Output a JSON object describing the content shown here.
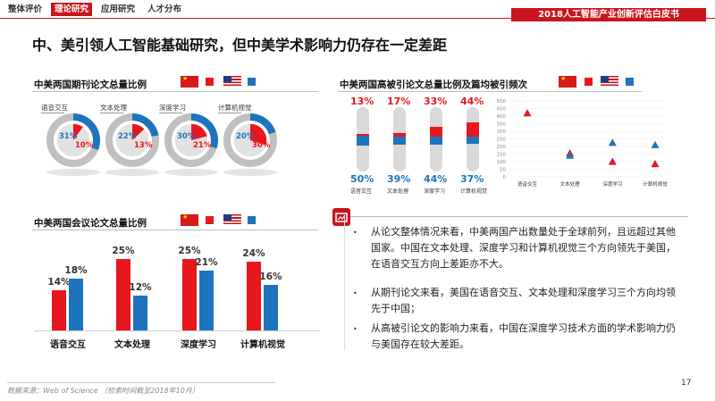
{
  "nav": {
    "tabs": [
      {
        "label": "整体评价",
        "active": false
      },
      {
        "label": "理论研究",
        "active": true
      },
      {
        "label": "应用研究",
        "active": false
      },
      {
        "label": "人才分布",
        "active": false
      }
    ],
    "report_title": "2018人工智能产业创新评估白皮书"
  },
  "page_title": "中、美引领人工智能基础研究，但中美学术影响力仍存在一定差距",
  "colors": {
    "china": "#e8161e",
    "usa": "#1e73be",
    "accent": "#c9151e"
  },
  "sections": {
    "journal": "中美两国期刊论文总量比例",
    "conference": "中美两国会议论文总量比例",
    "highly_cited": "中美两国高被引论文总量比例及篇均被引频次"
  },
  "chart_data": [
    {
      "type": "pie",
      "title": "中美两国期刊论文总量比例",
      "categories": [
        "语音交互",
        "文本处理",
        "深度学习",
        "计算机视觉"
      ],
      "series": [
        {
          "name": "美国",
          "values": [
            31,
            22,
            30,
            20
          ]
        },
        {
          "name": "中国",
          "values": [
            10,
            13,
            21,
            30
          ]
        }
      ],
      "labels": {
        "usa": [
          "31%",
          "22%",
          "30%",
          "20%"
        ],
        "china": [
          "10%",
          "13%",
          "21%",
          "30%"
        ]
      }
    },
    {
      "type": "bar",
      "title": "中美两国会议论文总量比例",
      "categories": [
        "语音交互",
        "文本处理",
        "深度学习",
        "计算机视觉"
      ],
      "series": [
        {
          "name": "中国",
          "values": [
            14,
            25,
            25,
            24
          ]
        },
        {
          "name": "美国",
          "values": [
            18,
            12,
            21,
            16
          ]
        }
      ],
      "labels": {
        "china": [
          "14%",
          "25%",
          "25%",
          "24%"
        ],
        "usa": [
          "18%",
          "12%",
          "21%",
          "16%"
        ]
      },
      "ylim": [
        0,
        28
      ]
    },
    {
      "type": "bar",
      "title": "中美两国高被引论文总量比例",
      "categories": [
        "语音交互",
        "文本处理",
        "深度学习",
        "计算机视觉"
      ],
      "series": [
        {
          "name": "中国",
          "values": [
            13,
            17,
            33,
            44
          ]
        },
        {
          "name": "美国",
          "values": [
            50,
            39,
            44,
            37
          ]
        }
      ],
      "labels": {
        "china": [
          "13%",
          "17%",
          "33%",
          "44%"
        ],
        "usa": [
          "50%",
          "39%",
          "44%",
          "37%"
        ]
      }
    },
    {
      "type": "scatter",
      "title": "篇均被引频次",
      "categories": [
        "语音交互",
        "文本处理",
        "深度学习",
        "计算机视觉"
      ],
      "ylim": [
        0,
        500
      ],
      "yticks": [
        "0",
        "50",
        "100",
        "150",
        "200",
        "250",
        "300",
        "350",
        "400",
        "450",
        "500"
      ],
      "series": [
        {
          "name": "中国",
          "values": [
            420,
            155,
            100,
            85
          ]
        },
        {
          "name": "美国",
          "values": [
            null,
            140,
            225,
            210
          ]
        }
      ]
    }
  ],
  "bullets": [
    "从论文整体情况来看，中美两国产出数量处于全球前列，且远超过其他国家。中国在文本处理、深度学习和计算机视觉三个方向领先于美国，在语音交互方向上差距亦不大。",
    "从期刊论文来看，美国在语音交互、文本处理和深度学习三个方向均领先于中国；",
    "从高被引论文的影响力来看，中国在深度学习技术方面的学术影响力仍与美国存在较大差距。"
  ],
  "footer": {
    "source": "数据来源：Web of Science （检索时间截至2018年10月）",
    "page_number": "17"
  }
}
